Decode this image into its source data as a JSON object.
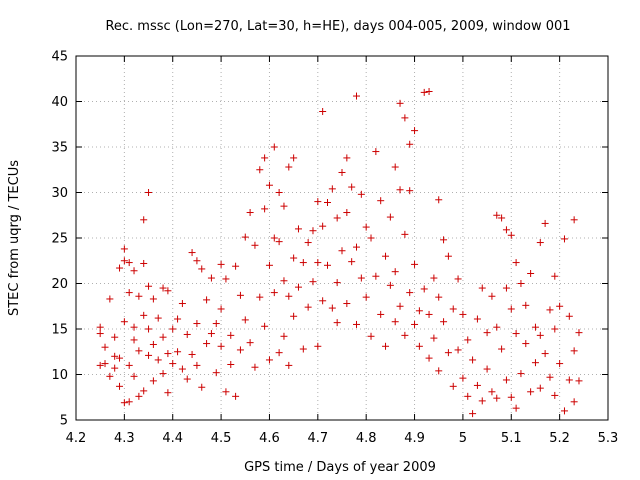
{
  "chart_data": {
    "type": "scatter",
    "title": "Rec. mssc (Lon=270, Lat=30, h=HE), days 004-005, 2009, window 001",
    "xlabel": "GPS time / Days of year 2009",
    "ylabel": "STEC from uqrg / TECUs",
    "xlim": [
      4.2,
      5.3
    ],
    "ylim": [
      5,
      45
    ],
    "xticks": [
      "4.2",
      "4.3",
      "4.4",
      "4.5",
      "4.6",
      "4.7",
      "4.8",
      "4.9",
      "5",
      "5.1",
      "5.2",
      "5.3"
    ],
    "yticks": [
      "5",
      "10",
      "15",
      "20",
      "25",
      "30",
      "35",
      "40",
      "45"
    ],
    "grid": true,
    "marker_color": "#cc0000",
    "series": [
      {
        "marker": "plus",
        "points": [
          [
            4.25,
            11.0
          ],
          [
            4.25,
            14.5
          ],
          [
            4.25,
            15.2
          ],
          [
            4.26,
            11.2
          ],
          [
            4.26,
            13.0
          ],
          [
            4.27,
            18.3
          ],
          [
            4.27,
            9.8
          ],
          [
            4.28,
            12.0
          ],
          [
            4.28,
            14.1
          ],
          [
            4.28,
            10.7
          ],
          [
            4.29,
            21.7
          ],
          [
            4.29,
            11.8
          ],
          [
            4.29,
            8.7
          ],
          [
            4.3,
            22.5
          ],
          [
            4.3,
            23.8
          ],
          [
            4.3,
            15.8
          ],
          [
            4.3,
            6.9
          ],
          [
            4.31,
            22.3
          ],
          [
            4.31,
            19.0
          ],
          [
            4.31,
            11.0
          ],
          [
            4.31,
            7.0
          ],
          [
            4.32,
            21.4
          ],
          [
            4.32,
            15.2
          ],
          [
            4.32,
            13.8
          ],
          [
            4.32,
            9.8
          ],
          [
            4.33,
            18.6
          ],
          [
            4.33,
            12.6
          ],
          [
            4.33,
            7.6
          ],
          [
            4.34,
            22.2
          ],
          [
            4.34,
            27.0
          ],
          [
            4.34,
            16.5
          ],
          [
            4.34,
            8.2
          ],
          [
            4.35,
            30.0
          ],
          [
            4.35,
            19.7
          ],
          [
            4.35,
            15.0
          ],
          [
            4.35,
            12.1
          ],
          [
            4.36,
            18.3
          ],
          [
            4.36,
            13.3
          ],
          [
            4.36,
            9.3
          ],
          [
            4.37,
            16.2
          ],
          [
            4.37,
            11.6
          ],
          [
            4.38,
            19.5
          ],
          [
            4.38,
            14.1
          ],
          [
            4.38,
            10.1
          ],
          [
            4.39,
            19.2
          ],
          [
            4.39,
            12.3
          ],
          [
            4.39,
            8.0
          ],
          [
            4.4,
            15.0
          ],
          [
            4.4,
            11.2
          ],
          [
            4.41,
            16.1
          ],
          [
            4.41,
            12.5
          ],
          [
            4.42,
            17.8
          ],
          [
            4.42,
            10.6
          ],
          [
            4.43,
            14.4
          ],
          [
            4.43,
            9.5
          ],
          [
            4.44,
            23.4
          ],
          [
            4.44,
            12.2
          ],
          [
            4.45,
            22.5
          ],
          [
            4.45,
            15.6
          ],
          [
            4.45,
            11.0
          ],
          [
            4.46,
            21.6
          ],
          [
            4.46,
            8.6
          ],
          [
            4.47,
            18.2
          ],
          [
            4.47,
            13.4
          ],
          [
            4.48,
            20.6
          ],
          [
            4.48,
            14.5
          ],
          [
            4.49,
            15.6
          ],
          [
            4.49,
            10.2
          ],
          [
            4.5,
            22.1
          ],
          [
            4.5,
            17.2
          ],
          [
            4.5,
            13.1
          ],
          [
            4.51,
            20.5
          ],
          [
            4.51,
            8.1
          ],
          [
            4.52,
            14.3
          ],
          [
            4.52,
            11.1
          ],
          [
            4.53,
            21.9
          ],
          [
            4.53,
            7.6
          ],
          [
            4.54,
            18.7
          ],
          [
            4.54,
            12.7
          ],
          [
            4.55,
            25.1
          ],
          [
            4.55,
            16.0
          ],
          [
            4.56,
            27.8
          ],
          [
            4.56,
            13.5
          ],
          [
            4.57,
            24.2
          ],
          [
            4.57,
            10.8
          ],
          [
            4.58,
            32.5
          ],
          [
            4.58,
            18.5
          ],
          [
            4.59,
            33.8
          ],
          [
            4.59,
            28.2
          ],
          [
            4.59,
            15.3
          ],
          [
            4.6,
            30.8
          ],
          [
            4.6,
            22.0
          ],
          [
            4.6,
            11.6
          ],
          [
            4.61,
            35.0
          ],
          [
            4.61,
            25.0
          ],
          [
            4.61,
            19.0
          ],
          [
            4.62,
            30.0
          ],
          [
            4.62,
            24.6
          ],
          [
            4.62,
            12.4
          ],
          [
            4.63,
            28.5
          ],
          [
            4.63,
            20.3
          ],
          [
            4.63,
            14.2
          ],
          [
            4.64,
            32.8
          ],
          [
            4.64,
            18.6
          ],
          [
            4.64,
            11.0
          ],
          [
            4.65,
            33.8
          ],
          [
            4.65,
            22.8
          ],
          [
            4.65,
            16.4
          ],
          [
            4.66,
            26.0
          ],
          [
            4.66,
            19.6
          ],
          [
            4.67,
            22.3
          ],
          [
            4.67,
            12.8
          ],
          [
            4.68,
            24.5
          ],
          [
            4.68,
            17.4
          ],
          [
            4.69,
            25.8
          ],
          [
            4.69,
            20.2
          ],
          [
            4.7,
            29.0
          ],
          [
            4.7,
            22.3
          ],
          [
            4.7,
            13.1
          ],
          [
            4.71,
            38.9
          ],
          [
            4.71,
            26.3
          ],
          [
            4.71,
            18.1
          ],
          [
            4.72,
            28.9
          ],
          [
            4.72,
            22.0
          ],
          [
            4.73,
            30.4
          ],
          [
            4.73,
            17.3
          ],
          [
            4.74,
            27.2
          ],
          [
            4.74,
            20.1
          ],
          [
            4.74,
            15.7
          ],
          [
            4.75,
            32.2
          ],
          [
            4.75,
            23.6
          ],
          [
            4.76,
            33.8
          ],
          [
            4.76,
            27.8
          ],
          [
            4.76,
            17.8
          ],
          [
            4.77,
            30.6
          ],
          [
            4.77,
            22.4
          ],
          [
            4.78,
            40.6
          ],
          [
            4.78,
            24.0
          ],
          [
            4.78,
            15.5
          ],
          [
            4.79,
            29.8
          ],
          [
            4.79,
            20.6
          ],
          [
            4.8,
            26.2
          ],
          [
            4.8,
            18.5
          ],
          [
            4.81,
            25.0
          ],
          [
            4.81,
            14.2
          ],
          [
            4.82,
            34.5
          ],
          [
            4.82,
            20.8
          ],
          [
            4.83,
            29.1
          ],
          [
            4.83,
            16.6
          ],
          [
            4.84,
            23.0
          ],
          [
            4.84,
            13.1
          ],
          [
            4.85,
            27.3
          ],
          [
            4.85,
            19.8
          ],
          [
            4.86,
            32.8
          ],
          [
            4.86,
            21.3
          ],
          [
            4.86,
            15.8
          ],
          [
            4.87,
            39.8
          ],
          [
            4.87,
            30.3
          ],
          [
            4.87,
            17.5
          ],
          [
            4.88,
            38.2
          ],
          [
            4.88,
            25.4
          ],
          [
            4.88,
            14.3
          ],
          [
            4.89,
            35.3
          ],
          [
            4.89,
            30.2
          ],
          [
            4.89,
            19.0
          ],
          [
            4.9,
            36.8
          ],
          [
            4.9,
            22.1
          ],
          [
            4.9,
            15.5
          ],
          [
            4.91,
            17.0
          ],
          [
            4.91,
            13.1
          ],
          [
            4.92,
            41.0
          ],
          [
            4.92,
            19.4
          ],
          [
            4.93,
            41.1
          ],
          [
            4.93,
            16.6
          ],
          [
            4.93,
            11.8
          ],
          [
            4.94,
            20.6
          ],
          [
            4.94,
            14.0
          ],
          [
            4.95,
            29.2
          ],
          [
            4.95,
            18.5
          ],
          [
            4.95,
            10.4
          ],
          [
            4.96,
            24.8
          ],
          [
            4.96,
            15.8
          ],
          [
            4.97,
            23.0
          ],
          [
            4.97,
            12.4
          ],
          [
            4.98,
            17.2
          ],
          [
            4.98,
            8.7
          ],
          [
            4.99,
            20.5
          ],
          [
            4.99,
            12.7
          ],
          [
            5.0,
            16.6
          ],
          [
            5.0,
            9.6
          ],
          [
            5.01,
            13.8
          ],
          [
            5.01,
            7.6
          ],
          [
            5.02,
            11.6
          ],
          [
            5.02,
            5.7
          ],
          [
            5.03,
            16.1
          ],
          [
            5.03,
            8.8
          ],
          [
            5.04,
            19.5
          ],
          [
            5.04,
            7.1
          ],
          [
            5.05,
            14.6
          ],
          [
            5.05,
            10.6
          ],
          [
            5.06,
            18.6
          ],
          [
            5.06,
            8.1
          ],
          [
            5.07,
            27.5
          ],
          [
            5.07,
            15.2
          ],
          [
            5.07,
            7.4
          ],
          [
            5.08,
            27.2
          ],
          [
            5.08,
            12.8
          ],
          [
            5.09,
            25.9
          ],
          [
            5.09,
            19.5
          ],
          [
            5.09,
            9.4
          ],
          [
            5.1,
            25.3
          ],
          [
            5.1,
            17.2
          ],
          [
            5.1,
            7.5
          ],
          [
            5.11,
            22.3
          ],
          [
            5.11,
            14.5
          ],
          [
            5.11,
            6.3
          ],
          [
            5.12,
            20.0
          ],
          [
            5.12,
            10.1
          ],
          [
            5.13,
            17.6
          ],
          [
            5.13,
            13.4
          ],
          [
            5.14,
            21.1
          ],
          [
            5.14,
            8.1
          ],
          [
            5.15,
            15.2
          ],
          [
            5.15,
            11.3
          ],
          [
            5.16,
            24.5
          ],
          [
            5.16,
            14.3
          ],
          [
            5.16,
            8.5
          ],
          [
            5.17,
            26.6
          ],
          [
            5.17,
            12.3
          ],
          [
            5.18,
            17.1
          ],
          [
            5.18,
            9.7
          ],
          [
            5.19,
            20.8
          ],
          [
            5.19,
            15.0
          ],
          [
            5.19,
            7.7
          ],
          [
            5.2,
            17.5
          ],
          [
            5.2,
            11.2
          ],
          [
            5.21,
            24.9
          ],
          [
            5.21,
            6.0
          ],
          [
            5.22,
            16.4
          ],
          [
            5.22,
            9.4
          ],
          [
            5.23,
            27.0
          ],
          [
            5.23,
            12.6
          ],
          [
            5.23,
            7.0
          ],
          [
            5.24,
            14.6
          ],
          [
            5.24,
            9.3
          ]
        ]
      }
    ]
  }
}
